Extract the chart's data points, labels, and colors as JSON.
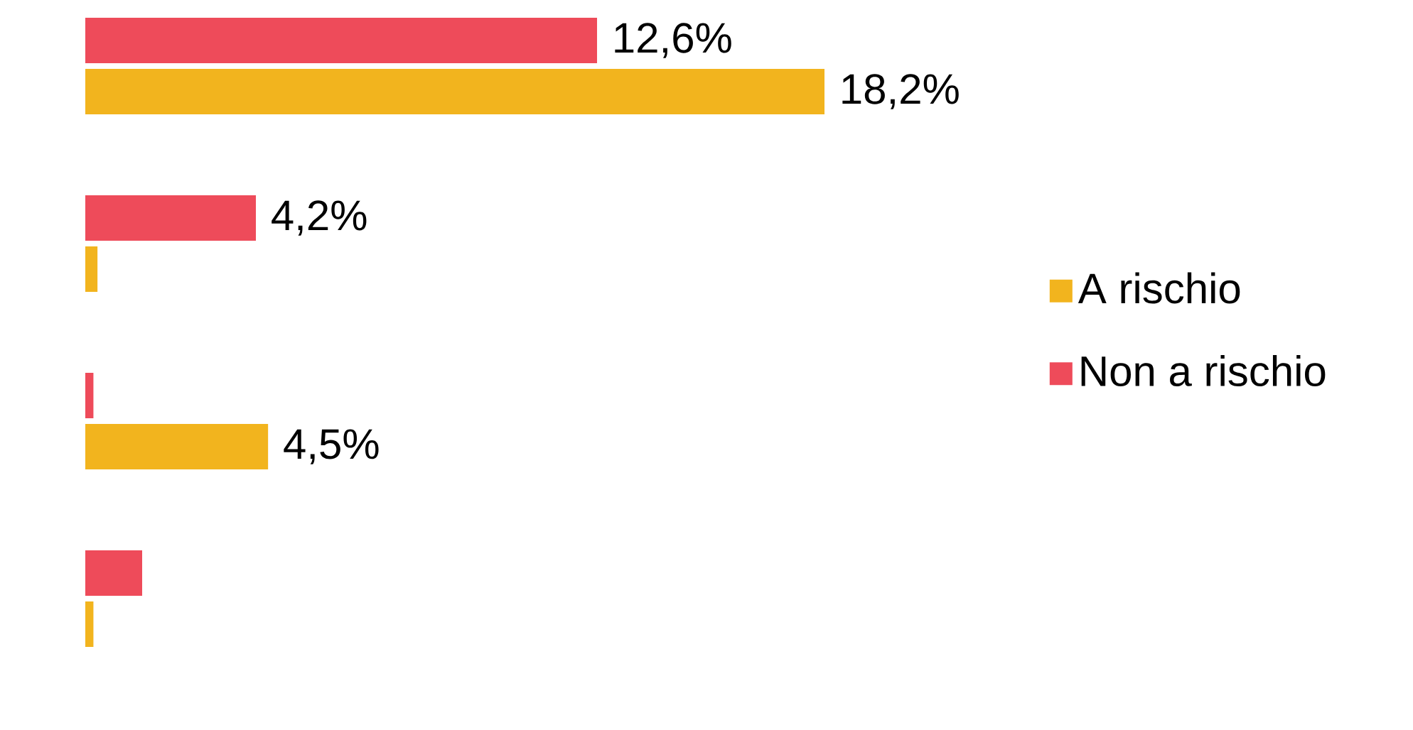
{
  "chart_data": {
    "type": "bar",
    "orientation": "horizontal",
    "categories": [
      null,
      null,
      null,
      null
    ],
    "series": [
      {
        "name": "A rischio",
        "color": "#f2b41e",
        "values": [
          18.2,
          0.3,
          4.5,
          0.2
        ],
        "value_labels": [
          "18,2%",
          null,
          "4,5%",
          null
        ]
      },
      {
        "name": "Non a rischio",
        "color": "#ee4b5a",
        "values": [
          12.6,
          4.2,
          0.2,
          1.4
        ],
        "value_labels": [
          "12,6%",
          "4,2%",
          null,
          null
        ]
      }
    ],
    "legend": "right"
  }
}
